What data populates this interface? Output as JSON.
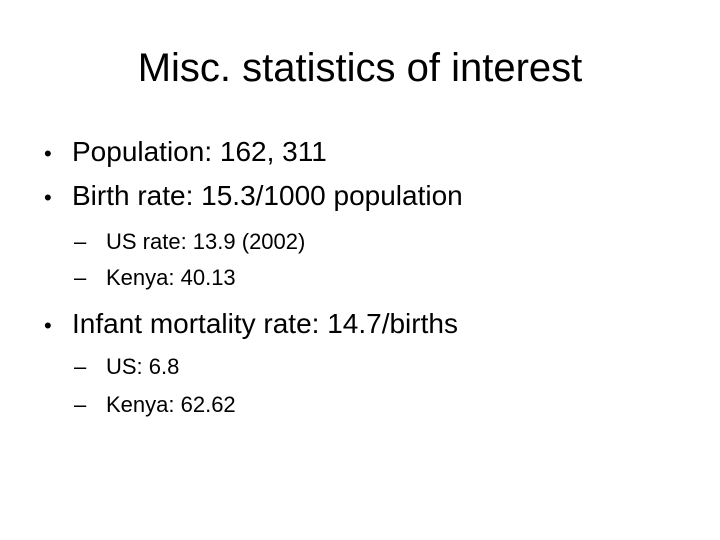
{
  "slide": {
    "title": "Misc. statistics of interest",
    "bullets": [
      {
        "marker": "•",
        "text": "Population: 162, 311"
      },
      {
        "marker": "•",
        "text": "Birth rate: 15.3/1000 population",
        "subitems": [
          {
            "marker": "–",
            "text": "US rate: 13.9 (2002)"
          },
          {
            "marker": "–",
            "text": "Kenya: 40.13"
          }
        ]
      },
      {
        "marker": "•",
        "text": "Infant mortality rate: 14.7/births",
        "subitems": [
          {
            "marker": "–",
            "text": "US: 6.8"
          },
          {
            "marker": "–",
            "text": "Kenya: 62.62"
          }
        ]
      }
    ]
  }
}
